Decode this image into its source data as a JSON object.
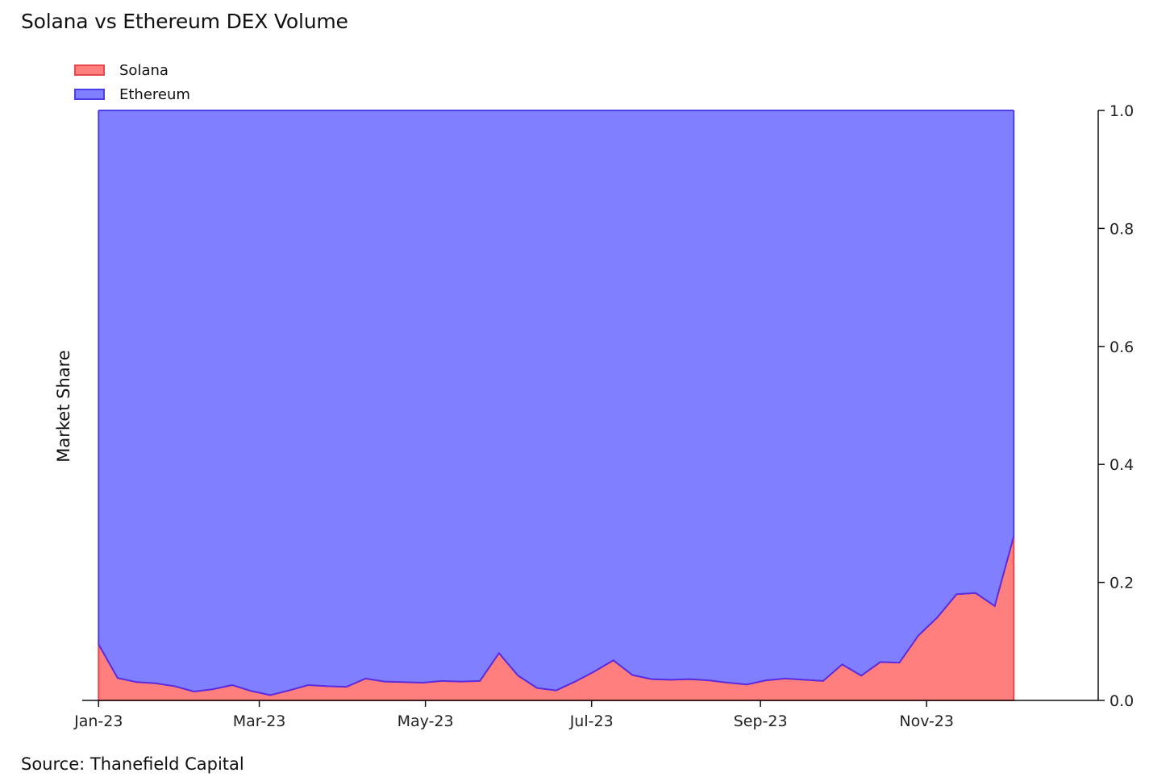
{
  "title": "Solana vs Ethereum DEX Volume",
  "source": "Source: Thanefield Capital",
  "chart_data": {
    "type": "area",
    "stacked": true,
    "ylabel": "Market Share",
    "y_axis_position": "right",
    "ylim": [
      0,
      1
    ],
    "yticks": [
      "0.0",
      "0.2",
      "0.4",
      "0.6",
      "0.8",
      "1.0"
    ],
    "xticks": [
      {
        "date": "2023-01-01",
        "label": "Jan-23"
      },
      {
        "date": "2023-03-01",
        "label": "Mar-23"
      },
      {
        "date": "2023-05-01",
        "label": "May-23"
      },
      {
        "date": "2023-07-01",
        "label": "Jul-23"
      },
      {
        "date": "2023-09-01",
        "label": "Sep-23"
      },
      {
        "date": "2023-11-01",
        "label": "Nov-23"
      }
    ],
    "xlim": [
      "2022-12-26",
      "2024-01-03"
    ],
    "legend_position": "top-left",
    "grid": false,
    "colors": {
      "solana_fill": "#ff7f7f",
      "solana_line": "#e8474e",
      "ethereum_fill": "#7f7fff",
      "ethereum_line": "#5a2de0"
    },
    "x": [
      "2023-01-01",
      "2023-01-08",
      "2023-01-15",
      "2023-01-22",
      "2023-01-29",
      "2023-02-05",
      "2023-02-12",
      "2023-02-19",
      "2023-02-26",
      "2023-03-05",
      "2023-03-12",
      "2023-03-19",
      "2023-03-26",
      "2023-04-02",
      "2023-04-09",
      "2023-04-16",
      "2023-04-23",
      "2023-04-30",
      "2023-05-07",
      "2023-05-14",
      "2023-05-21",
      "2023-05-28",
      "2023-06-04",
      "2023-06-11",
      "2023-06-18",
      "2023-06-25",
      "2023-07-02",
      "2023-07-09",
      "2023-07-16",
      "2023-07-23",
      "2023-07-30",
      "2023-08-06",
      "2023-08-13",
      "2023-08-20",
      "2023-08-27",
      "2023-09-03",
      "2023-09-10",
      "2023-09-17",
      "2023-09-24",
      "2023-10-01",
      "2023-10-08",
      "2023-10-15",
      "2023-10-22",
      "2023-10-29",
      "2023-11-05",
      "2023-11-12",
      "2023-11-19",
      "2023-11-26",
      "2023-12-03"
    ],
    "series": [
      {
        "name": "Solana",
        "values": [
          0.095,
          0.038,
          0.031,
          0.029,
          0.024,
          0.015,
          0.019,
          0.026,
          0.016,
          0.009,
          0.017,
          0.026,
          0.024,
          0.023,
          0.037,
          0.032,
          0.031,
          0.03,
          0.033,
          0.032,
          0.033,
          0.08,
          0.042,
          0.021,
          0.017,
          0.032,
          0.049,
          0.068,
          0.043,
          0.036,
          0.035,
          0.036,
          0.034,
          0.03,
          0.027,
          0.034,
          0.037,
          0.035,
          0.033,
          0.061,
          0.042,
          0.065,
          0.064,
          0.11,
          0.141,
          0.18,
          0.182,
          0.16,
          0.278
        ]
      },
      {
        "name": "Ethereum",
        "values": [
          0.905,
          0.962,
          0.969,
          0.971,
          0.976,
          0.985,
          0.981,
          0.974,
          0.984,
          0.991,
          0.983,
          0.974,
          0.976,
          0.977,
          0.963,
          0.968,
          0.969,
          0.97,
          0.967,
          0.968,
          0.967,
          0.92,
          0.958,
          0.979,
          0.983,
          0.968,
          0.951,
          0.932,
          0.957,
          0.964,
          0.965,
          0.964,
          0.966,
          0.97,
          0.973,
          0.966,
          0.963,
          0.965,
          0.967,
          0.939,
          0.958,
          0.935,
          0.936,
          0.89,
          0.859,
          0.82,
          0.818,
          0.84,
          0.722
        ]
      }
    ]
  }
}
